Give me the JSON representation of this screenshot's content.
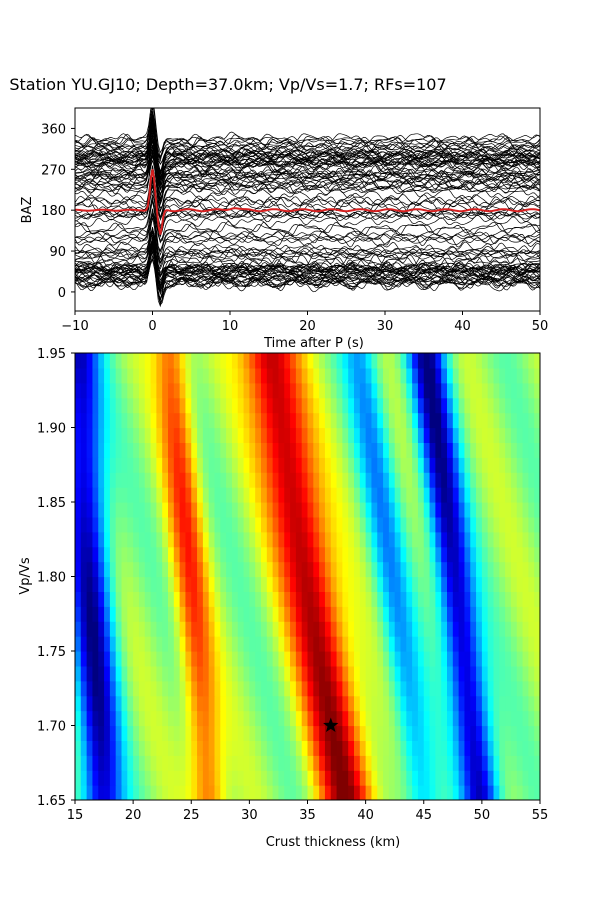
{
  "figure": {
    "title": "Station YU.GJ10; Depth=37.0km; Vp/Vs=1.7; RFs=107"
  },
  "chart_data": [
    {
      "type": "line",
      "xlabel": "Time after P (s)",
      "ylabel": "BAZ",
      "xlim": [
        -10,
        50
      ],
      "ylim": [
        -42,
        405
      ],
      "x_ticks": [
        "−10",
        "0",
        "10",
        "20",
        "30",
        "40",
        "50"
      ],
      "x_tick_values": [
        -10,
        0,
        10,
        20,
        30,
        40,
        50
      ],
      "y_ticks": [
        "0",
        "90",
        "180",
        "270",
        "360"
      ],
      "y_tick_values": [
        0,
        90,
        180,
        270,
        360
      ],
      "trace_count": 107,
      "traces_color": "#000000",
      "stack_color": "#d62020",
      "stack_baseline": 180,
      "stack_peak": {
        "x": 0,
        "y": 270
      },
      "trace_baz_groups": [
        {
          "baz_range": [
            10,
            60
          ],
          "count": 30
        },
        {
          "baz_range": [
            60,
            130
          ],
          "count": 14
        },
        {
          "baz_range": [
            130,
            230
          ],
          "count": 15
        },
        {
          "baz_range": [
            230,
            340
          ],
          "count": 48
        }
      ]
    },
    {
      "type": "heatmap",
      "xlabel": "Crust thickness (km)",
      "ylabel": "Vp/Vs",
      "xlim": [
        15,
        55
      ],
      "ylim": [
        1.65,
        1.95
      ],
      "x_ticks": [
        "15",
        "20",
        "25",
        "30",
        "35",
        "40",
        "45",
        "50",
        "55"
      ],
      "x_tick_values": [
        15,
        20,
        25,
        30,
        35,
        40,
        45,
        50,
        55
      ],
      "y_ticks": [
        "1.65",
        "1.70",
        "1.75",
        "1.80",
        "1.85",
        "1.90",
        "1.95"
      ],
      "y_tick_values": [
        1.65,
        1.7,
        1.75,
        1.8,
        1.85,
        1.9,
        1.95
      ],
      "colormap": "jet",
      "grid_h_step": 0.5,
      "grid_k_step": 0.01,
      "best": {
        "H": 37.0,
        "k": 1.7,
        "marker": "star"
      },
      "bands_at_k_1_70": [
        {
          "H": 17.0,
          "value": 0.05,
          "width": 1.2
        },
        {
          "H": 26.0,
          "value": 0.8,
          "width": 1.0
        },
        {
          "H": 37.4,
          "value": 0.98,
          "width": 1.6
        },
        {
          "H": 44.0,
          "value": 0.3,
          "width": 1.0
        },
        {
          "H": 49.2,
          "value": 0.04,
          "width": 1.1
        }
      ]
    }
  ]
}
